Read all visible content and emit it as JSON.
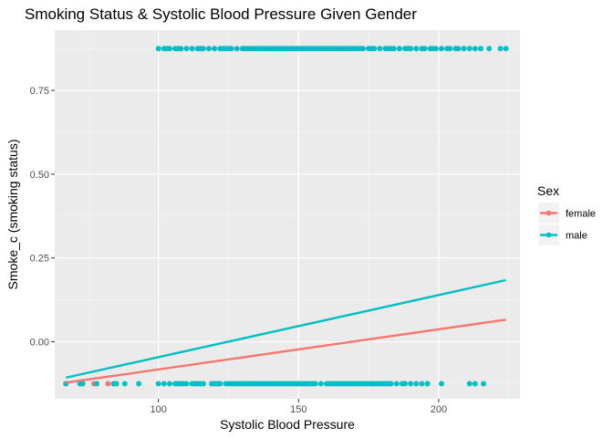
{
  "chart_data": {
    "type": "scatter",
    "title": "Smoking Status & Systolic Blood Pressure Given Gender",
    "xlabel": "Systolic Blood Pressure",
    "ylabel": "Smoke_c (smoking status)",
    "xlim": [
      63,
      229
    ],
    "ylim": [
      -0.17,
      0.93
    ],
    "x_ticks": [
      100,
      150,
      200
    ],
    "x_tick_labels": [
      "100",
      "150",
      "200"
    ],
    "y_ticks": [
      0.0,
      0.25,
      0.5,
      0.75
    ],
    "y_tick_labels": [
      "0.00",
      "0.25",
      "0.50",
      "0.75"
    ],
    "grid": true,
    "legend": {
      "title": "Sex",
      "position": "right"
    },
    "series": [
      {
        "name": "female",
        "color": "#F8766D",
        "points_low_x": [
          67,
          72,
          77,
          82
        ],
        "points_high_x": [],
        "line": {
          "x": [
            67,
            224
          ],
          "y": [
            -0.122,
            0.066
          ]
        }
      },
      {
        "name": "male",
        "color": "#00BFC4",
        "points_low_x": [
          67,
          72,
          73,
          78,
          84,
          85,
          88,
          93,
          100,
          102,
          104,
          106,
          107,
          108,
          109,
          110,
          112,
          113,
          114,
          115,
          116,
          119,
          120,
          121,
          122,
          124,
          125,
          126,
          127,
          128,
          129,
          130,
          131,
          132,
          133,
          134,
          135,
          136,
          137,
          138,
          139,
          140,
          141,
          142,
          143,
          144,
          145,
          146,
          147,
          148,
          149,
          150,
          151,
          152,
          153,
          154,
          155,
          156,
          158,
          160,
          161,
          162,
          163,
          164,
          165,
          166,
          167,
          168,
          169,
          170,
          171,
          172,
          173,
          174,
          175,
          176,
          177,
          178,
          179,
          180,
          181,
          182,
          183,
          185,
          187,
          188,
          190,
          192,
          194,
          196,
          201,
          211,
          213,
          216
        ],
        "points_high_x": [
          100,
          102,
          103,
          104,
          106,
          107,
          108,
          110,
          112,
          114,
          115,
          116,
          118,
          120,
          122,
          123,
          124,
          125,
          126,
          128,
          130,
          131,
          132,
          133,
          134,
          135,
          136,
          137,
          138,
          139,
          140,
          141,
          142,
          143,
          144,
          145,
          146,
          147,
          148,
          149,
          150,
          151,
          152,
          153,
          154,
          155,
          156,
          157,
          158,
          159,
          160,
          161,
          162,
          163,
          164,
          165,
          166,
          167,
          168,
          169,
          170,
          171,
          172,
          173,
          175,
          176,
          177,
          179,
          181,
          182,
          183,
          184,
          186,
          188,
          189,
          190,
          192,
          194,
          195,
          197,
          198,
          199,
          201,
          203,
          204,
          206,
          207,
          209,
          211,
          213,
          215,
          218,
          222,
          224
        ],
        "line": {
          "x": [
            67,
            224
          ],
          "y": [
            -0.107,
            0.184
          ]
        }
      }
    ],
    "points_y": {
      "low": -0.125,
      "high": 0.875
    }
  }
}
